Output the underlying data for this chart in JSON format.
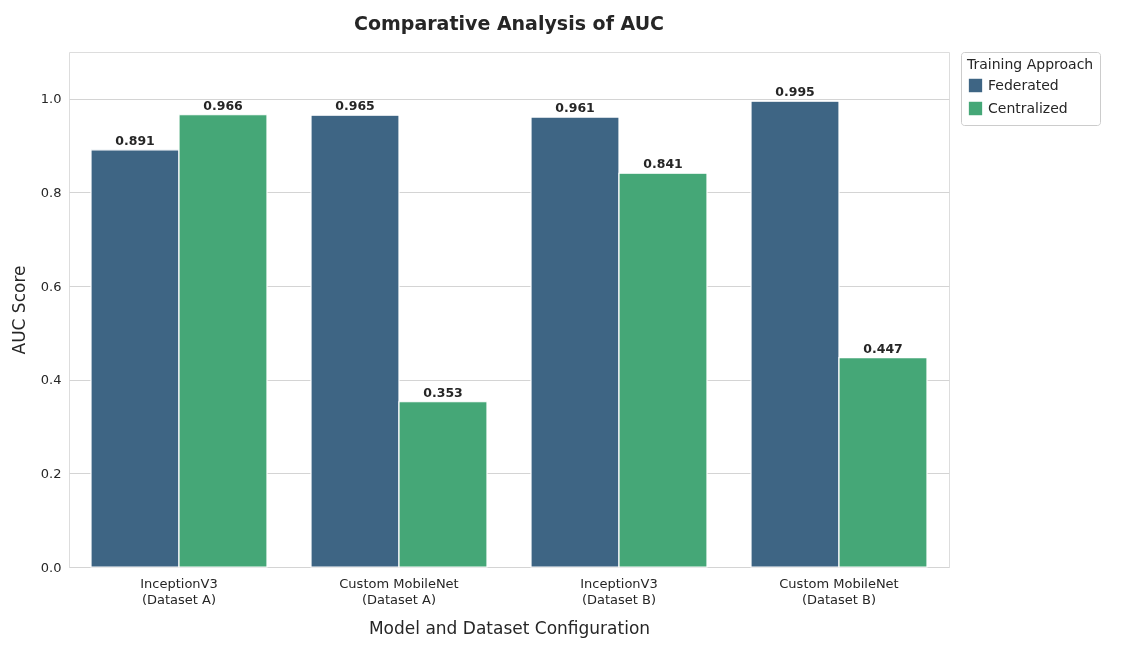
{
  "chart_data": {
    "type": "bar",
    "title": "Comparative Analysis of AUC",
    "xlabel": "Model and Dataset Configuration",
    "ylabel": "AUC Score",
    "legend_title": "Training Approach",
    "categories": [
      "InceptionV3\n(Dataset A)",
      "Custom MobileNet\n(Dataset A)",
      "InceptionV3\n(Dataset B)",
      "Custom MobileNet\n(Dataset B)"
    ],
    "series": [
      {
        "name": "Federated",
        "color": "#3e6584",
        "values": [
          0.891,
          0.965,
          0.961,
          0.995
        ]
      },
      {
        "name": "Centralized",
        "color": "#45a777",
        "values": [
          0.966,
          0.353,
          0.841,
          0.447
        ]
      }
    ],
    "ylim": [
      0,
      1.1
    ],
    "yticks": [
      {
        "value": 0,
        "label": "0.0"
      },
      0.2,
      0.4,
      0.6,
      0.8,
      {
        "value": 1,
        "label": "1.0"
      }
    ],
    "grid": "y",
    "legend": "top right",
    "data_labels": true
  }
}
